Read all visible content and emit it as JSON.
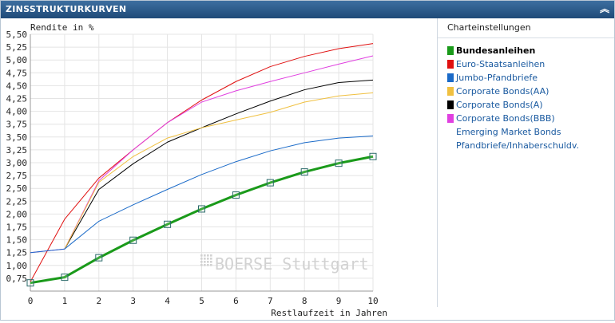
{
  "header": {
    "title": "ZINSSTRUKTURKURVEN",
    "collapse_icon": "double-chevron-up-icon"
  },
  "settings": {
    "title": "Charteinstellungen",
    "items": [
      {
        "label": "Bundesanleihen",
        "color": "#1a9a1a",
        "active": true
      },
      {
        "label": "Euro-Staatsanleihen",
        "color": "#e01010",
        "active": false
      },
      {
        "label": "Jumbo-Pfandbriefe",
        "color": "#1a6ac8",
        "active": false
      },
      {
        "label": "Corporate Bonds(AA)",
        "color": "#f0c040",
        "active": false
      },
      {
        "label": "Corporate Bonds(A)",
        "color": "#000000",
        "active": false
      },
      {
        "label": "Corporate Bonds(BBB)",
        "color": "#e040e0",
        "active": false
      },
      {
        "label": "Emerging Market Bonds",
        "color": "",
        "active": false
      },
      {
        "label": "Pfandbriefe/Inhaberschuldv.",
        "color": "",
        "active": false
      }
    ]
  },
  "watermark": "BOERSE Stuttgart",
  "chart_data": {
    "type": "line",
    "ylabel": "Rendite in %",
    "xlabel": "Restlaufzeit in Jahren",
    "xlim": [
      0,
      10
    ],
    "ylim": [
      0.5,
      5.5
    ],
    "x": [
      0,
      1,
      2,
      3,
      4,
      5,
      6,
      7,
      8,
      9,
      10
    ],
    "yticks": [
      "0,75",
      "1,00",
      "1,25",
      "1,50",
      "1,75",
      "2,00",
      "2,25",
      "2,50",
      "2,75",
      "3,00",
      "3,25",
      "3,50",
      "3,75",
      "4,00",
      "4,25",
      "4,50",
      "4,75",
      "5,00",
      "5,25",
      "5,50"
    ],
    "xticks": [
      "0",
      "1",
      "2",
      "3",
      "4",
      "5",
      "6",
      "7",
      "8",
      "9",
      "10"
    ],
    "grid": true,
    "series": [
      {
        "name": "Euro-Staatsanleihen",
        "color": "#e01010",
        "width": 1,
        "markers": false,
        "values": [
          0.68,
          1.9,
          2.7,
          3.25,
          3.78,
          4.22,
          4.58,
          4.87,
          5.07,
          5.22,
          5.32
        ]
      },
      {
        "name": "Corporate Bonds(BBB)",
        "color": "#e040e0",
        "width": 1,
        "markers": false,
        "values": [
          1.25,
          1.32,
          2.65,
          3.25,
          3.78,
          4.18,
          4.4,
          4.58,
          4.75,
          4.92,
          5.08
        ]
      },
      {
        "name": "Corporate Bonds(A)",
        "color": "#000000",
        "width": 1,
        "markers": false,
        "values": [
          null,
          1.32,
          2.48,
          2.98,
          3.4,
          3.68,
          3.95,
          4.2,
          4.42,
          4.56,
          4.61
        ]
      },
      {
        "name": "Corporate Bonds(AA)",
        "color": "#f0c040",
        "width": 1,
        "markers": false,
        "values": [
          null,
          1.32,
          2.62,
          3.12,
          3.48,
          3.68,
          3.83,
          3.98,
          4.18,
          4.3,
          4.36
        ]
      },
      {
        "name": "Jumbo-Pfandbriefe",
        "color": "#1a6ac8",
        "width": 1,
        "markers": false,
        "values": [
          1.25,
          1.32,
          1.86,
          2.18,
          2.48,
          2.77,
          3.02,
          3.23,
          3.39,
          3.48,
          3.52
        ]
      },
      {
        "name": "Bundesanleihen",
        "color": "#1a9a1a",
        "width": 3,
        "markers": true,
        "values": [
          0.66,
          0.77,
          1.15,
          1.49,
          1.8,
          2.1,
          2.37,
          2.61,
          2.82,
          2.99,
          3.12
        ]
      }
    ]
  }
}
